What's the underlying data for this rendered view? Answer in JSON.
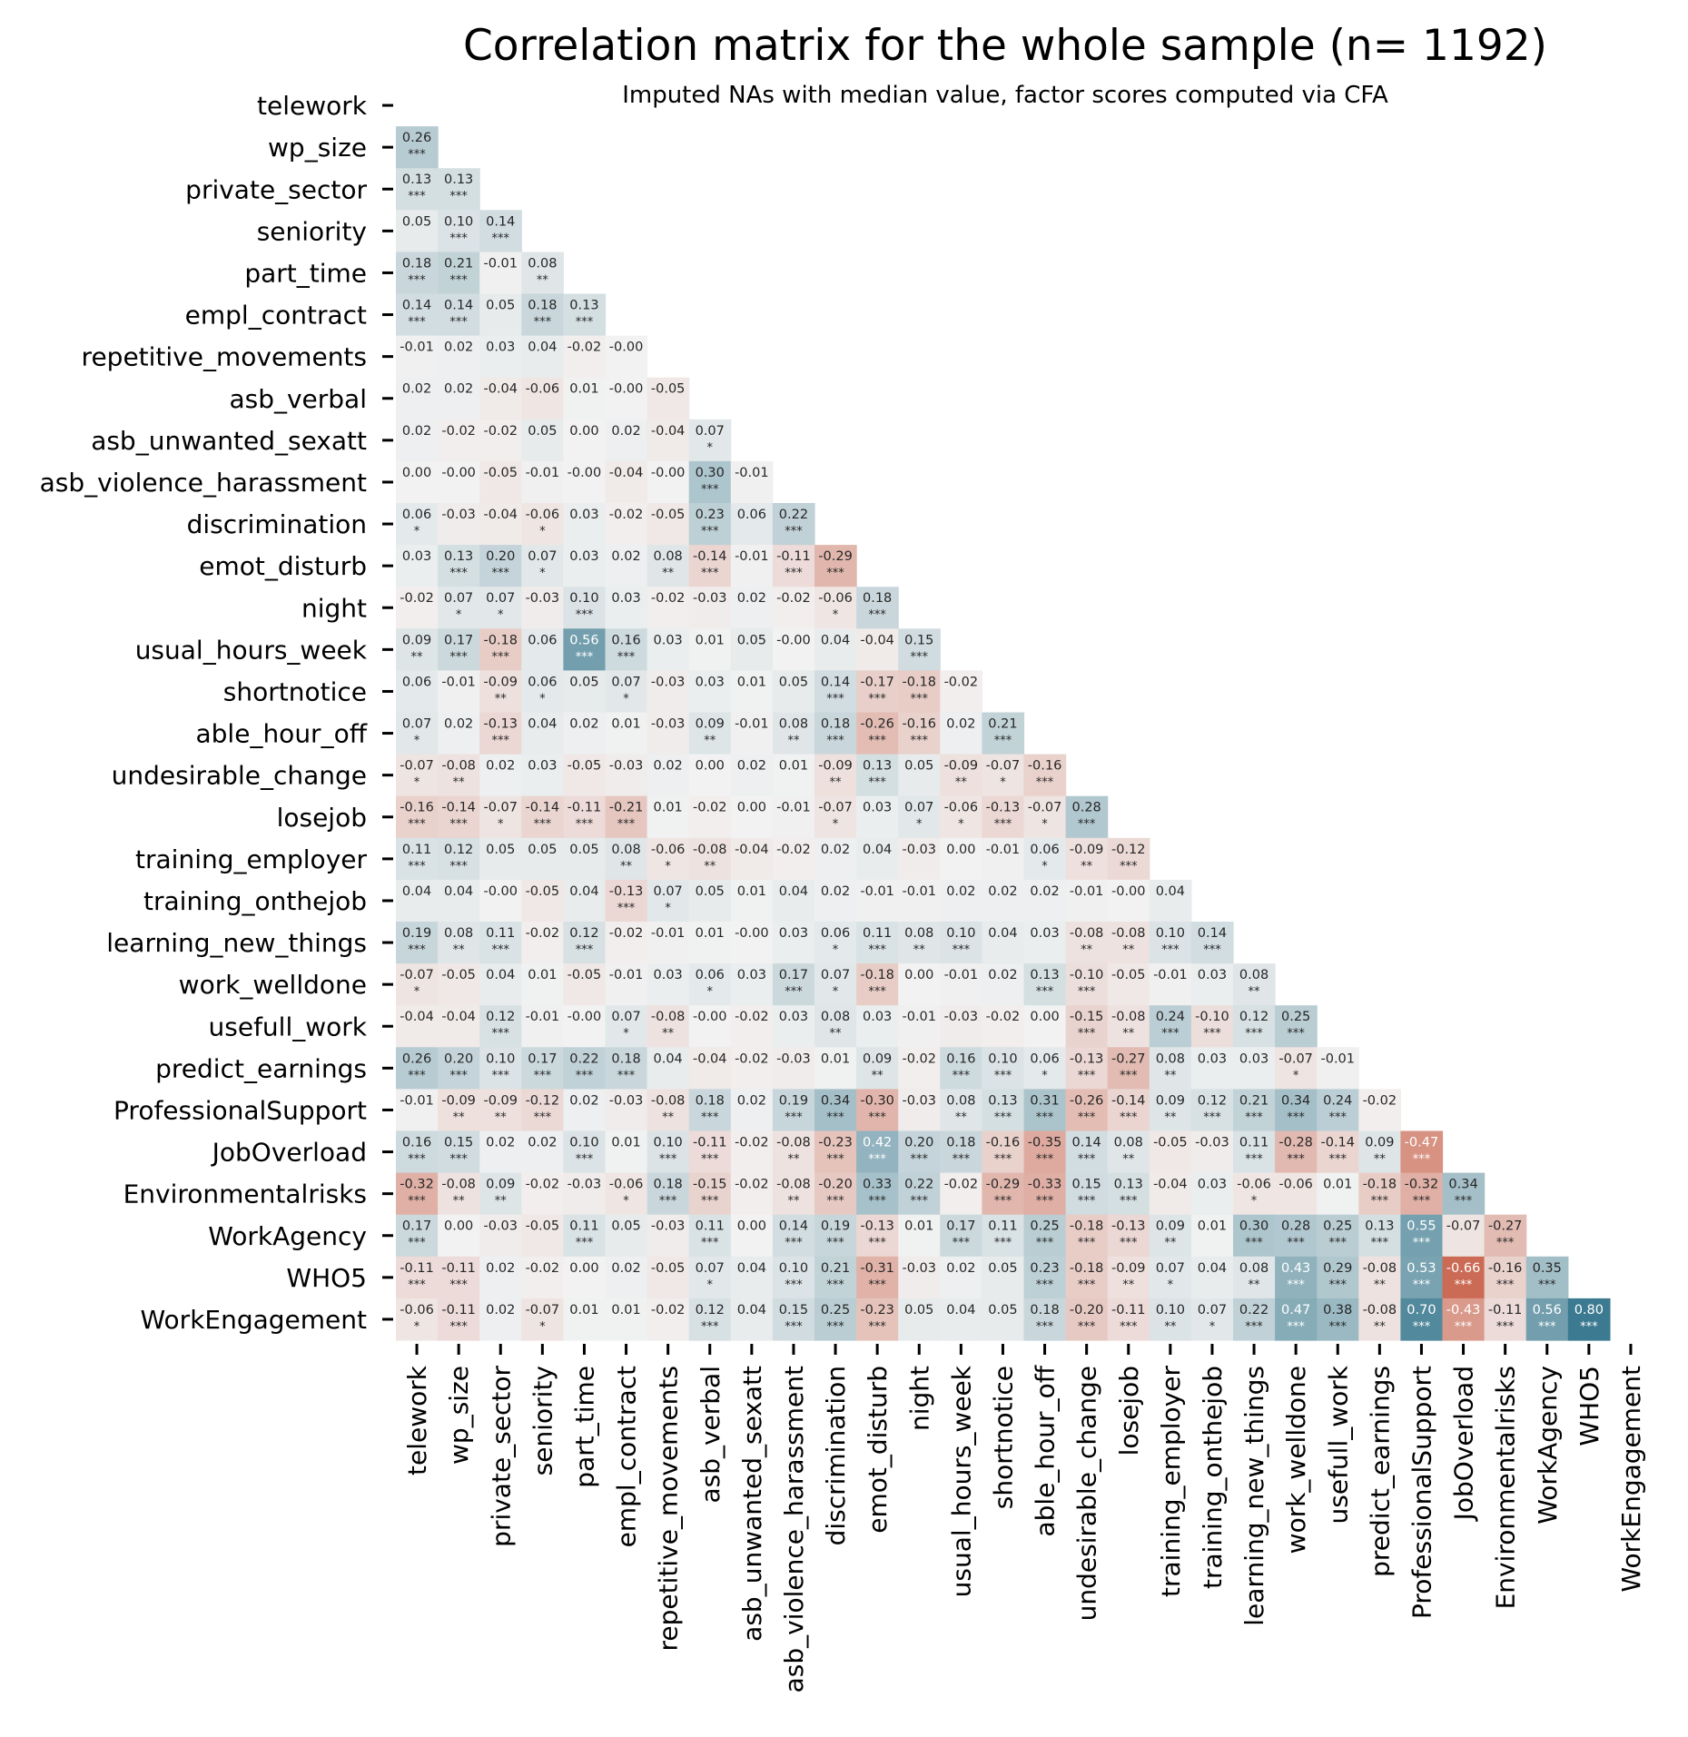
{
  "chart_data": {
    "type": "heatmap",
    "title": "Correlation matrix for the whole sample (n= 1192)",
    "subtitle": "Imputed NAs with median value, factor scores computed via CFA",
    "variables": [
      "telework",
      "wp_size",
      "private_sector",
      "seniority",
      "part_time",
      "empl_contract",
      "repetitive_movements",
      "asb_verbal",
      "asb_unwanted_sexatt",
      "asb_violence_harassment",
      "discrimination",
      "emot_disturb",
      "night",
      "usual_hours_week",
      "shortnotice",
      "able_hour_off",
      "undesirable_change",
      "losejob",
      "training_employer",
      "training_onthejob",
      "learning_new_things",
      "work_welldone",
      "usefull_work",
      "predict_earnings",
      "ProfessionalSupport",
      "JobOverload",
      "Environmentalrisks",
      "WorkAgency",
      "WHO5",
      "WorkEngagement"
    ],
    "triangle": "lower",
    "colormap": {
      "negative": "#c44e34",
      "neutral": "#f2f2f2",
      "positive": "#3b7a90"
    },
    "values": [
      [],
      [
        "0.26"
      ],
      [
        "0.13",
        "0.13"
      ],
      [
        "0.05",
        "0.10",
        "0.14"
      ],
      [
        "0.18",
        "0.21",
        "-0.01",
        "0.08"
      ],
      [
        "0.14",
        "0.14",
        "0.05",
        "0.18",
        "0.13"
      ],
      [
        "-0.01",
        "0.02",
        "0.03",
        "0.04",
        "-0.02",
        "-0.00"
      ],
      [
        "0.02",
        "0.02",
        "-0.04",
        "-0.06",
        "0.01",
        "-0.00",
        "-0.05"
      ],
      [
        "0.02",
        "-0.02",
        "-0.02",
        "0.05",
        "0.00",
        "0.02",
        "-0.04",
        "0.07"
      ],
      [
        "0.00",
        "-0.00",
        "-0.05",
        "-0.01",
        "-0.00",
        "-0.04",
        "-0.00",
        "0.30",
        "-0.01"
      ],
      [
        "0.06",
        "-0.03",
        "-0.04",
        "-0.06",
        "0.03",
        "-0.02",
        "-0.05",
        "0.23",
        "0.06",
        "0.22"
      ],
      [
        "0.03",
        "0.13",
        "0.20",
        "0.07",
        "0.03",
        "0.02",
        "0.08",
        "-0.14",
        "-0.01",
        "-0.11",
        "-0.29"
      ],
      [
        "-0.02",
        "0.07",
        "0.07",
        "-0.03",
        "0.10",
        "0.03",
        "-0.02",
        "-0.03",
        "0.02",
        "-0.02",
        "-0.06",
        "0.18"
      ],
      [
        "0.09",
        "0.17",
        "-0.18",
        "0.06",
        "0.56",
        "0.16",
        "0.03",
        "0.01",
        "0.05",
        "-0.00",
        "0.04",
        "-0.04",
        "0.15"
      ],
      [
        "0.06",
        "-0.01",
        "-0.09",
        "0.06",
        "0.05",
        "0.07",
        "-0.03",
        "0.03",
        "0.01",
        "0.05",
        "0.14",
        "-0.17",
        "-0.18",
        "-0.02"
      ],
      [
        "0.07",
        "0.02",
        "-0.13",
        "0.04",
        "0.02",
        "0.01",
        "-0.03",
        "0.09",
        "-0.01",
        "0.08",
        "0.18",
        "-0.26",
        "-0.16",
        "0.02",
        "0.21"
      ],
      [
        "-0.07",
        "-0.08",
        "0.02",
        "0.03",
        "-0.05",
        "-0.03",
        "0.02",
        "0.00",
        "0.02",
        "0.01",
        "-0.09",
        "0.13",
        "0.05",
        "-0.09",
        "-0.07",
        "-0.16"
      ],
      [
        "-0.16",
        "-0.14",
        "-0.07",
        "-0.14",
        "-0.11",
        "-0.21",
        "0.01",
        "-0.02",
        "0.00",
        "-0.01",
        "-0.07",
        "0.03",
        "0.07",
        "-0.06",
        "-0.13",
        "-0.07",
        "0.28"
      ],
      [
        "0.11",
        "0.12",
        "0.05",
        "0.05",
        "0.05",
        "0.08",
        "-0.06",
        "-0.08",
        "-0.04",
        "-0.02",
        "0.02",
        "0.04",
        "-0.03",
        "0.00",
        "-0.01",
        "0.06",
        "-0.09",
        "-0.12"
      ],
      [
        "0.04",
        "0.04",
        "-0.00",
        "-0.05",
        "0.04",
        "-0.13",
        "0.07",
        "0.05",
        "0.01",
        "0.04",
        "0.02",
        "-0.01",
        "-0.01",
        "0.02",
        "0.02",
        "0.02",
        "-0.01",
        "-0.00",
        "0.04"
      ],
      [
        "0.19",
        "0.08",
        "0.11",
        "-0.02",
        "0.12",
        "-0.02",
        "-0.01",
        "0.01",
        "-0.00",
        "0.03",
        "0.06",
        "0.11",
        "0.08",
        "0.10",
        "0.04",
        "0.03",
        "-0.08",
        "-0.08",
        "0.10",
        "0.14"
      ],
      [
        "-0.07",
        "-0.05",
        "0.04",
        "0.01",
        "-0.05",
        "-0.01",
        "0.03",
        "0.06",
        "0.03",
        "0.17",
        "0.07",
        "-0.18",
        "0.00",
        "-0.01",
        "0.02",
        "0.13",
        "-0.10",
        "-0.05",
        "-0.01",
        "0.03",
        "0.08"
      ],
      [
        "-0.04",
        "-0.04",
        "0.12",
        "-0.01",
        "-0.00",
        "0.07",
        "-0.08",
        "-0.00",
        "-0.02",
        "0.03",
        "0.08",
        "0.03",
        "-0.01",
        "-0.03",
        "-0.02",
        "0.00",
        "-0.15",
        "-0.08",
        "0.24",
        "-0.10",
        "0.12",
        "0.25"
      ],
      [
        "0.26",
        "0.20",
        "0.10",
        "0.17",
        "0.22",
        "0.18",
        "0.04",
        "-0.04",
        "-0.02",
        "-0.03",
        "0.01",
        "0.09",
        "-0.02",
        "0.16",
        "0.10",
        "0.06",
        "-0.13",
        "-0.27",
        "0.08",
        "0.03",
        "0.03",
        "-0.07",
        "-0.01"
      ],
      [
        "-0.01",
        "-0.09",
        "-0.09",
        "-0.12",
        "0.02",
        "-0.03",
        "-0.08",
        "0.18",
        "0.02",
        "0.19",
        "0.34",
        "-0.30",
        "-0.03",
        "0.08",
        "0.13",
        "0.31",
        "-0.26",
        "-0.14",
        "0.09",
        "0.12",
        "0.21",
        "0.34",
        "0.24",
        "-0.02"
      ],
      [
        "0.16",
        "0.15",
        "0.02",
        "0.02",
        "0.10",
        "0.01",
        "0.10",
        "-0.11",
        "-0.02",
        "-0.08",
        "-0.23",
        "0.42",
        "0.20",
        "0.18",
        "-0.16",
        "-0.35",
        "0.14",
        "0.08",
        "-0.05",
        "-0.03",
        "0.11",
        "-0.28",
        "-0.14",
        "0.09",
        "-0.47"
      ],
      [
        "-0.32",
        "-0.08",
        "0.09",
        "-0.02",
        "-0.03",
        "-0.06",
        "0.18",
        "-0.15",
        "-0.02",
        "-0.08",
        "-0.20",
        "0.33",
        "0.22",
        "-0.02",
        "-0.29",
        "-0.33",
        "0.15",
        "0.13",
        "-0.04",
        "0.03",
        "-0.06",
        "-0.06",
        "0.01",
        "-0.18",
        "-0.32",
        "0.34"
      ],
      [
        "0.17",
        "0.00",
        "-0.03",
        "-0.05",
        "0.11",
        "0.05",
        "-0.03",
        "0.11",
        "0.00",
        "0.14",
        "0.19",
        "-0.13",
        "0.01",
        "0.17",
        "0.11",
        "0.25",
        "-0.18",
        "-0.13",
        "0.09",
        "0.01",
        "0.30",
        "0.28",
        "0.25",
        "0.13",
        "0.55",
        "-0.07",
        "-0.27"
      ],
      [
        "-0.11",
        "-0.11",
        "0.02",
        "-0.02",
        "0.00",
        "0.02",
        "-0.05",
        "0.07",
        "0.04",
        "0.10",
        "0.21",
        "-0.31",
        "-0.03",
        "0.02",
        "0.05",
        "0.23",
        "-0.18",
        "-0.09",
        "0.07",
        "0.04",
        "0.08",
        "0.43",
        "0.29",
        "-0.08",
        "0.53",
        "-0.66",
        "-0.16",
        "0.35"
      ],
      [
        "-0.06",
        "-0.11",
        "0.02",
        "-0.07",
        "0.01",
        "0.01",
        "-0.02",
        "0.12",
        "0.04",
        "0.15",
        "0.25",
        "-0.23",
        "0.05",
        "0.04",
        "0.05",
        "0.18",
        "-0.20",
        "-0.11",
        "0.10",
        "0.07",
        "0.22",
        "0.47",
        "0.38",
        "-0.08",
        "0.70",
        "-0.43",
        "-0.11",
        "0.56",
        "0.80"
      ]
    ],
    "significance": [
      [],
      [
        "***"
      ],
      [
        "***",
        "***"
      ],
      [
        "",
        "***",
        "***"
      ],
      [
        "***",
        "***",
        "",
        "**"
      ],
      [
        "***",
        "***",
        "",
        "***",
        "***"
      ],
      [
        "",
        "",
        "",
        "",
        "",
        ""
      ],
      [
        "",
        "",
        "",
        "",
        "",
        "",
        ""
      ],
      [
        "",
        "",
        "",
        "",
        "",
        "",
        "",
        "*"
      ],
      [
        "",
        "",
        "",
        "",
        "",
        "",
        "",
        "***",
        ""
      ],
      [
        "*",
        "",
        "",
        "*",
        "",
        "",
        "",
        "***",
        "",
        "***"
      ],
      [
        "",
        "***",
        "***",
        "*",
        "",
        "",
        "**",
        "***",
        "",
        "***",
        "***"
      ],
      [
        "",
        "*",
        "*",
        "",
        "***",
        "",
        "",
        "",
        "",
        "",
        "*",
        "***"
      ],
      [
        "**",
        "***",
        "***",
        "",
        "***",
        "***",
        "",
        "",
        "",
        "",
        "",
        "",
        "***"
      ],
      [
        "",
        "",
        "**",
        "*",
        "",
        "*",
        "",
        "",
        "",
        "",
        "***",
        "***",
        "***",
        ""
      ],
      [
        "*",
        "",
        "***",
        "",
        "",
        "",
        "",
        "**",
        "",
        "**",
        "***",
        "***",
        "***",
        "",
        "***"
      ],
      [
        "*",
        "**",
        "",
        "",
        "",
        "",
        "",
        "",
        "",
        "",
        "**",
        "***",
        "",
        "**",
        "*",
        "***"
      ],
      [
        "***",
        "***",
        "*",
        "***",
        "***",
        "***",
        "",
        "",
        "",
        "",
        "*",
        "",
        "*",
        "*",
        "***",
        "*",
        "***"
      ],
      [
        "***",
        "***",
        "",
        "",
        "",
        "**",
        "*",
        "**",
        "",
        "",
        "",
        "",
        "",
        "",
        "",
        "*",
        "**",
        "***"
      ],
      [
        "",
        "",
        "",
        "",
        "",
        "***",
        "*",
        "",
        "",
        "",
        "",
        "",
        "",
        "",
        "",
        "",
        "",
        "",
        ""
      ],
      [
        "***",
        "**",
        "***",
        "",
        "***",
        "",
        "",
        "",
        "",
        "",
        "*",
        "***",
        "**",
        "***",
        "",
        "",
        "**",
        "**",
        "***",
        "***"
      ],
      [
        "*",
        "",
        "",
        "",
        "",
        "",
        "",
        "*",
        "",
        "***",
        "*",
        "***",
        "",
        "",
        "",
        "***",
        "***",
        "",
        "",
        "",
        "**"
      ],
      [
        "",
        "",
        "***",
        "",
        "",
        "*",
        "**",
        "",
        "",
        "",
        "**",
        "",
        "",
        "",
        "",
        "",
        "***",
        "**",
        "***",
        "***",
        "***",
        "***"
      ],
      [
        "***",
        "***",
        "***",
        "***",
        "***",
        "***",
        "",
        "",
        "",
        "",
        "",
        "**",
        "",
        "***",
        "***",
        "*",
        "***",
        "***",
        "**",
        "",
        "",
        "*",
        ""
      ],
      [
        "",
        "**",
        "**",
        "***",
        "",
        "",
        "**",
        "***",
        "",
        "***",
        "***",
        "***",
        "",
        "**",
        "***",
        "***",
        "***",
        "***",
        "**",
        "***",
        "***",
        "***",
        "***",
        ""
      ],
      [
        "***",
        "***",
        "",
        "",
        "***",
        "",
        "***",
        "***",
        "",
        "**",
        "***",
        "***",
        "***",
        "***",
        "***",
        "***",
        "***",
        "**",
        "",
        "",
        "***",
        "***",
        "***",
        "**",
        "***"
      ],
      [
        "***",
        "**",
        "**",
        "",
        "",
        "*",
        "***",
        "***",
        "",
        "**",
        "***",
        "***",
        "***",
        "",
        "***",
        "***",
        "***",
        "***",
        "",
        "",
        "*",
        "",
        "",
        "***",
        "***",
        "***"
      ],
      [
        "***",
        "",
        "",
        "",
        "***",
        "",
        "",
        "***",
        "",
        "***",
        "***",
        "***",
        "",
        "***",
        "***",
        "***",
        "***",
        "***",
        "**",
        "",
        "***",
        "***",
        "***",
        "***",
        "***",
        "",
        "***"
      ],
      [
        "***",
        "***",
        "",
        "",
        "",
        "",
        "",
        "*",
        "",
        "***",
        "***",
        "***",
        "",
        "",
        "",
        "***",
        "***",
        "**",
        "*",
        "",
        "**",
        "***",
        "***",
        "**",
        "***",
        "***",
        "***",
        "***"
      ],
      [
        "*",
        "***",
        "",
        "*",
        "",
        "",
        "",
        "***",
        "",
        "***",
        "***",
        "***",
        "",
        "",
        "",
        "***",
        "***",
        "***",
        "**",
        "*",
        "***",
        "***",
        "***",
        "**",
        "***",
        "***",
        "***",
        "***",
        "***"
      ]
    ]
  }
}
